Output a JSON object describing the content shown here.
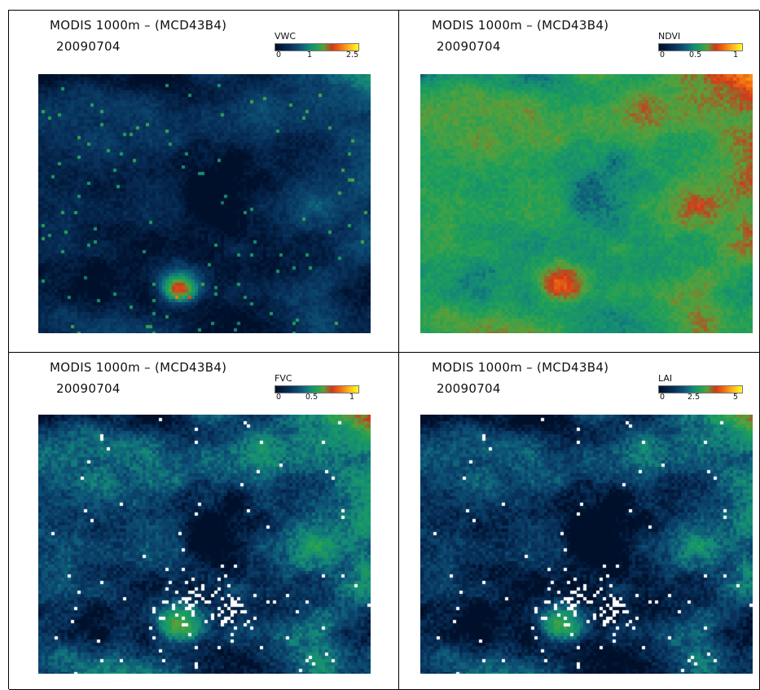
{
  "panels": [
    {
      "title": "MODIS 1000m – (MCD43B4)",
      "date": "20090704",
      "variable": "VWC",
      "ticks": [
        "0",
        "1",
        "2.5"
      ],
      "style": "vwc"
    },
    {
      "title": "MODIS 1000m – (MCD43B4)",
      "date": "20090704",
      "variable": "NDVI",
      "ticks": [
        "0",
        "0.5",
        "1"
      ],
      "style": "ndvi"
    },
    {
      "title": "MODIS 1000m – (MCD43B4)",
      "date": "20090704",
      "variable": "FVC",
      "ticks": [
        "0",
        "0.5",
        "1"
      ],
      "style": "fvc"
    },
    {
      "title": "MODIS 1000m – (MCD43B4)",
      "date": "20090704",
      "variable": "LAI",
      "ticks": [
        "0",
        "2.5",
        "5"
      ],
      "style": "lai"
    }
  ],
  "colormap": [
    "#000f2a",
    "#08305a",
    "#0e5478",
    "#158a78",
    "#1ea05a",
    "#5aa03a",
    "#cc3a1c",
    "#f06b10",
    "#ffb020",
    "#ffff20"
  ],
  "nodata_color": "#ffffff"
}
